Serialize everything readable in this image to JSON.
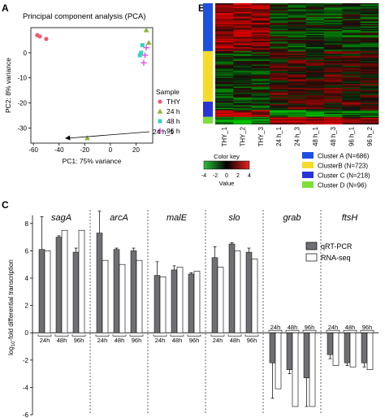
{
  "panels": {
    "a": "A",
    "b": "B",
    "c": "C"
  },
  "pca": {
    "title": "Principal component analysis (PCA)",
    "xlabel": "PC1: 75% variance",
    "ylabel": "PC2: 8% variance",
    "xticks": [
      "-60",
      "-40",
      "-20",
      "0",
      "20"
    ],
    "yticks": [
      "-30",
      "-20",
      "-10",
      "0"
    ],
    "legend_title": "Sample",
    "legend": [
      {
        "name": "THY",
        "color": "#ee5b74",
        "marker": "circle"
      },
      {
        "name": "24 h",
        "color": "#8db33a",
        "marker": "triangle"
      },
      {
        "name": "48 h",
        "color": "#38d0c0",
        "marker": "square"
      },
      {
        "name": "96 h",
        "color": "#e050e0",
        "marker": "plus"
      }
    ],
    "annotation": "24 h_1"
  },
  "heatmap": {
    "columns": [
      "THY_1",
      "THY_2",
      "THY_3",
      "24 h_1",
      "24 h_3",
      "48 h_1",
      "48 h_3",
      "96 h_1",
      "96 h_2"
    ],
    "color_key_title": "Color key",
    "color_key_label": "Value",
    "color_key_ticks": [
      "-4",
      "-2",
      "0",
      "2",
      "4"
    ],
    "clusters": [
      {
        "name": "Cluster A (N=686)",
        "color": "#1e50e0"
      },
      {
        "name": "ClusterB (N=723)",
        "color": "#f5dc28"
      },
      {
        "name": "Cluster C (N=218)",
        "color": "#2a33d8"
      },
      {
        "name": "Cluster D (N=96)",
        "color": "#7ee03a"
      }
    ]
  },
  "bar": {
    "ylabel": "log10-fold differential transcription",
    "yticks": [
      "8",
      "6",
      "4",
      "2",
      "0",
      "-2",
      "-4",
      "-6"
    ],
    "genes": [
      "sagA",
      "arcA",
      "malE",
      "slo",
      "grab",
      "ftsH"
    ],
    "times": [
      "24h",
      "48h",
      "96h"
    ],
    "legend": [
      "qRT-PCR",
      "RNA-seq"
    ],
    "colors": {
      "qrt": "#6f6f73",
      "rnaseq": "#ffffff"
    }
  },
  "chart_data": [
    {
      "type": "scatter",
      "title": "Principal component analysis (PCA)",
      "xlabel": "PC1: 75% variance",
      "ylabel": "PC2: 8% variance",
      "xlim": [
        -62,
        33
      ],
      "ylim": [
        -36,
        10
      ],
      "legend_position": "right",
      "series": [
        {
          "name": "THY",
          "points": [
            [
              -57,
              7
            ],
            [
              -55,
              6.5
            ],
            [
              -50,
              5.5
            ]
          ]
        },
        {
          "name": "24 h",
          "points": [
            [
              28,
              9
            ],
            [
              30,
              4
            ],
            [
              -18,
              -34
            ]
          ]
        },
        {
          "name": "48 h",
          "points": [
            [
              25,
              3
            ],
            [
              24,
              0
            ],
            [
              23,
              -1
            ]
          ]
        },
        {
          "name": "96 h",
          "points": [
            [
              28,
              2
            ],
            [
              27,
              -1
            ],
            [
              26,
              -4
            ]
          ]
        }
      ],
      "annotations": [
        {
          "text": "24 h_1",
          "x": -18,
          "y": -34
        }
      ]
    },
    {
      "type": "bar",
      "ylabel": "log10-fold differential transcription",
      "ylim": [
        -6,
        9
      ],
      "categories": [
        "sagA 24h",
        "sagA 48h",
        "sagA 96h",
        "arcA 24h",
        "arcA 48h",
        "arcA 96h",
        "malE 24h",
        "malE 48h",
        "malE 96h",
        "slo 24h",
        "slo 48h",
        "slo 96h",
        "grab 24h",
        "grab 48h",
        "grab 96h",
        "ftsH 24h",
        "ftsH 48h",
        "ftsH 96h"
      ],
      "series": [
        {
          "name": "qRT-PCR",
          "values": [
            6.1,
            7.0,
            5.9,
            7.3,
            6.1,
            6.0,
            4.2,
            4.6,
            4.3,
            5.5,
            6.5,
            5.9,
            -2.2,
            -2.7,
            -3.3,
            -1.6,
            -2.2,
            -2.2
          ],
          "errors": [
            2.4,
            0.1,
            0.3,
            1.6,
            0.1,
            0.2,
            1.0,
            0.3,
            0.1,
            0.8,
            0.1,
            0.3,
            2.6,
            0.3,
            2.1,
            0.3,
            0.2,
            0.3
          ]
        },
        {
          "name": "RNA-seq",
          "values": [
            6.0,
            7.5,
            7.5,
            5.3,
            5.0,
            5.3,
            4.1,
            4.8,
            4.5,
            4.8,
            6.0,
            5.4,
            -4.1,
            -5.4,
            -5.4,
            -2.4,
            -2.5,
            -2.7
          ]
        }
      ]
    }
  ]
}
